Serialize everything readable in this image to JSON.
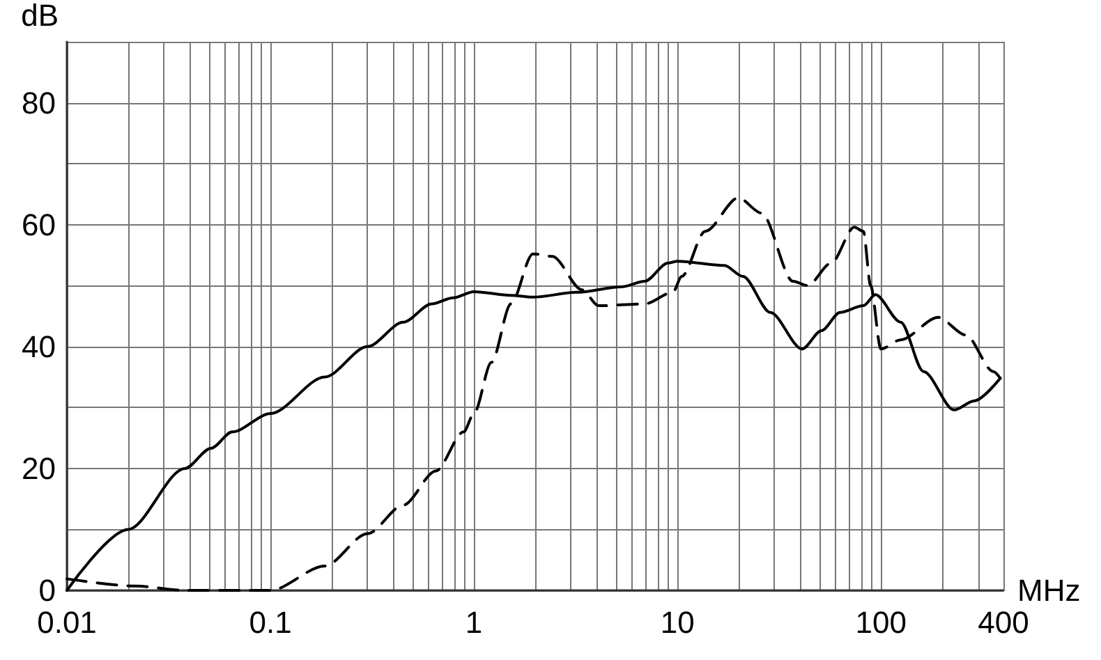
{
  "chart_data": {
    "type": "line",
    "xlabel": "MHz",
    "ylabel": "dB",
    "log": "x",
    "grid": true,
    "marker": "none",
    "xlim": [
      0.01,
      400
    ],
    "ylim": [
      0,
      90
    ],
    "xticks": [
      0.01,
      {
        "value": 0.02,
        "label": null
      },
      {
        "value": 0.03,
        "label": null
      },
      {
        "value": 0.04,
        "label": null
      },
      {
        "value": 0.05,
        "label": null
      },
      {
        "value": 0.06,
        "label": null
      },
      {
        "value": 0.07,
        "label": null
      },
      {
        "value": 0.08,
        "label": null
      },
      {
        "value": 0.09,
        "label": null
      },
      0.1,
      {
        "value": 0.2,
        "label": null
      },
      {
        "value": 0.3,
        "label": null
      },
      {
        "value": 0.4,
        "label": null
      },
      {
        "value": 0.5,
        "label": null
      },
      {
        "value": 0.6,
        "label": null
      },
      {
        "value": 0.7,
        "label": null
      },
      {
        "value": 0.8,
        "label": null
      },
      {
        "value": 0.9,
        "label": null
      },
      1,
      {
        "value": 2,
        "label": null
      },
      {
        "value": 3,
        "label": null
      },
      {
        "value": 4,
        "label": null
      },
      {
        "value": 5,
        "label": null
      },
      {
        "value": 6,
        "label": null
      },
      {
        "value": 7,
        "label": null
      },
      {
        "value": 8,
        "label": null
      },
      {
        "value": 9,
        "label": null
      },
      10,
      {
        "value": 20,
        "label": null
      },
      {
        "value": 30,
        "label": null
      },
      {
        "value": 40,
        "label": null
      },
      {
        "value": 50,
        "label": null
      },
      {
        "value": 60,
        "label": null
      },
      {
        "value": 70,
        "label": null
      },
      {
        "value": 80,
        "label": null
      },
      {
        "value": 90,
        "label": null
      },
      100,
      {
        "value": 200,
        "label": null
      },
      {
        "value": 300,
        "label": null
      },
      400
    ],
    "yticks": [
      0,
      {
        "value": 10,
        "label": null
      },
      20,
      {
        "value": 30,
        "label": null
      },
      40,
      {
        "value": 50,
        "label": null
      },
      60,
      {
        "value": 70,
        "label": null
      },
      80,
      {
        "value": 90,
        "label": null
      }
    ],
    "series": [
      {
        "color": "#000000",
        "line_style": "solid",
        "x": [
          0.01,
          0.02,
          0.038,
          0.051,
          0.065,
          0.1,
          0.185,
          0.3,
          0.45,
          0.62,
          0.79,
          1,
          1.52,
          1.95,
          3.2,
          5.3,
          6.9,
          9,
          10,
          17,
          21,
          28.6,
          41,
          51,
          63,
          82,
          94,
          125,
          162,
          229,
          288,
          386
        ],
        "values": [
          0,
          10,
          20,
          23.3,
          26,
          29,
          35,
          40,
          44,
          47,
          48,
          49,
          48.4,
          48.1,
          48.9,
          49.8,
          50.7,
          53.7,
          54,
          53.3,
          51.5,
          45.6,
          39.6,
          42.6,
          45.6,
          46.7,
          48.5,
          44,
          35.9,
          29.6,
          31.1,
          34.8
        ]
      },
      {
        "color": "#000000",
        "line_style": "dashed",
        "x": [
          0.01,
          0.022,
          0.038,
          0.1,
          0.185,
          0.3,
          0.45,
          0.65,
          0.89,
          1,
          1.22,
          1.52,
          1.95,
          2.43,
          3.4,
          4.1,
          6.9,
          9.5,
          10.5,
          13.7,
          19.9,
          25.9,
          37,
          43.6,
          57,
          74,
          82,
          89,
          100,
          125,
          191,
          261,
          357,
          386
        ],
        "values": [
          1.9,
          0.7,
          0,
          0,
          4,
          9.3,
          14,
          19.6,
          26,
          29,
          37.4,
          47,
          55.2,
          54.8,
          49.3,
          46.7,
          47,
          48.9,
          51.5,
          58.9,
          64.4,
          61.9,
          50.7,
          50,
          53.7,
          59.6,
          58.9,
          50,
          39.6,
          41.1,
          44.8,
          41.9,
          35.9,
          34.8
        ]
      }
    ]
  }
}
